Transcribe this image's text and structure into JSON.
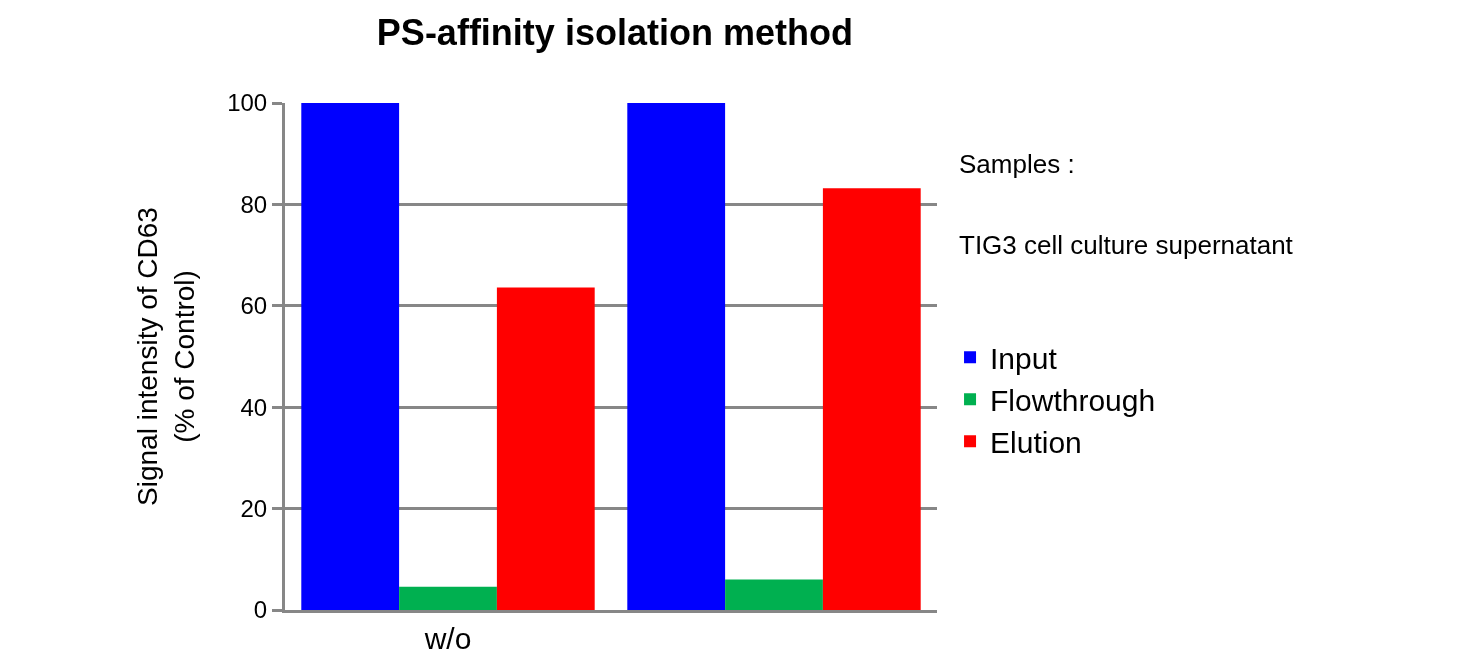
{
  "chart_data": {
    "type": "bar",
    "title": "PS-affinity isolation method",
    "ylabel": "Signal intensity of CD63\n(% of Control)",
    "categories": [
      "w/o",
      null
    ],
    "series": [
      {
        "name": "Input",
        "color": "#0000ff",
        "values": [
          100,
          100
        ]
      },
      {
        "name": "Flowthrough",
        "color": "#00b050",
        "values": [
          4.6,
          6.0
        ]
      },
      {
        "name": "Elution",
        "color": "#ff0000",
        "values": [
          63.6,
          83.2
        ]
      }
    ],
    "ylim": [
      0,
      100
    ],
    "yticks": [
      0,
      20,
      40,
      60,
      80,
      100
    ],
    "grid": "y",
    "legend": "right",
    "annotations": [
      "Samples :",
      "TIG3 cell culture supernatant"
    ]
  }
}
